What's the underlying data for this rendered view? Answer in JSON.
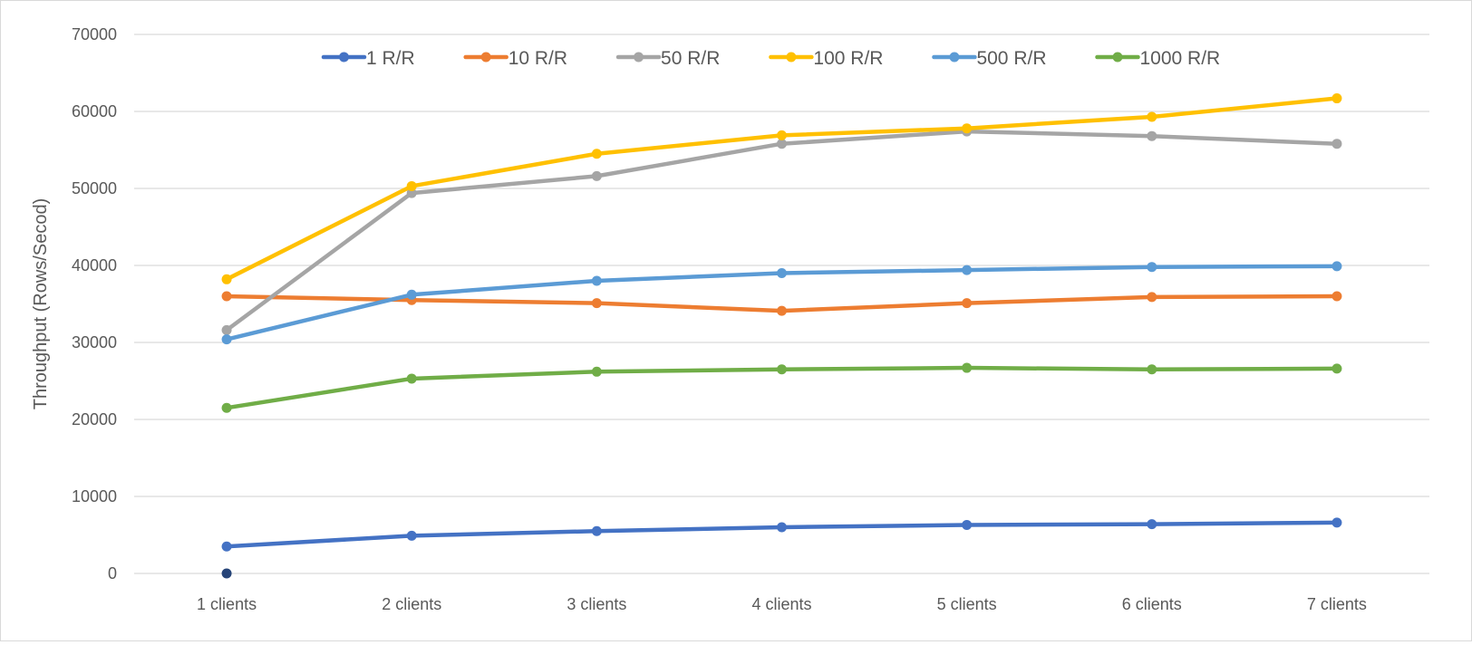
{
  "chart_data": {
    "type": "line",
    "title": "",
    "xlabel": "",
    "ylabel": "Throughput (Rows/Secod)",
    "ylim": [
      0,
      70000
    ],
    "yticks": [
      0,
      10000,
      20000,
      30000,
      40000,
      50000,
      60000,
      70000
    ],
    "grid": true,
    "legend_position": "top",
    "categories": [
      "1 clients",
      "2 clients",
      "3 clients",
      "4 clients",
      "5 clients",
      "6 clients",
      "7 clients"
    ],
    "series": [
      {
        "name": "1 R/R",
        "color": "#4472C4",
        "values": [
          3500,
          4900,
          5500,
          6000,
          6300,
          6400,
          6600
        ]
      },
      {
        "name": "10 R/R",
        "color": "#ED7D31",
        "values": [
          36000,
          35500,
          35100,
          34100,
          35100,
          35900,
          36000
        ]
      },
      {
        "name": "50 R/R",
        "color": "#A5A5A5",
        "values": [
          31600,
          49400,
          51600,
          55800,
          57400,
          56800,
          55800
        ]
      },
      {
        "name": "100 R/R",
        "color": "#FFC000",
        "values": [
          38200,
          50300,
          54500,
          56900,
          57800,
          59300,
          61700
        ]
      },
      {
        "name": "500 R/R",
        "color": "#5B9BD5",
        "values": [
          30400,
          36200,
          38000,
          39000,
          39400,
          39800,
          39900
        ]
      },
      {
        "name": "1000 R/R",
        "color": "#70AD47",
        "values": [
          21500,
          25300,
          26200,
          26500,
          26700,
          26500,
          26600
        ]
      }
    ],
    "extra_points": [
      {
        "category": "1 clients",
        "value": 0,
        "color": "#264478"
      }
    ]
  }
}
